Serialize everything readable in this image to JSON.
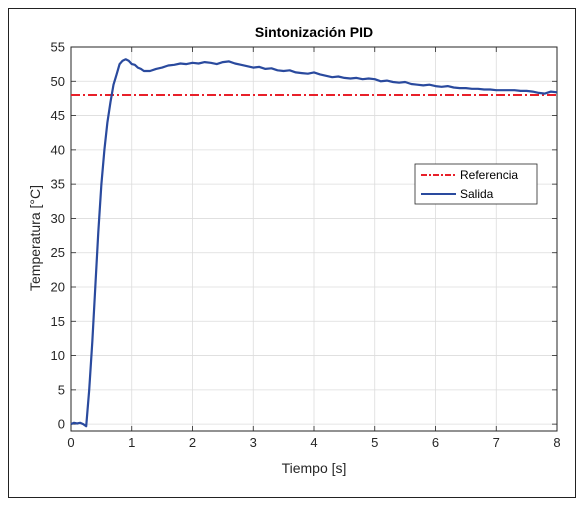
{
  "chart_data": {
    "type": "line",
    "title": "Sintonización PID",
    "xlabel": "Tiempo [s]",
    "ylabel": "Temperatura [°C]",
    "xlim": [
      0,
      8
    ],
    "ylim": [
      -1,
      55
    ],
    "xticks": [
      0,
      1,
      2,
      3,
      4,
      5,
      6,
      7,
      8
    ],
    "yticks": [
      0,
      5,
      10,
      15,
      20,
      25,
      30,
      35,
      40,
      45,
      50,
      55
    ],
    "grid": true,
    "legend_position": "right",
    "series": [
      {
        "name": "Referencia",
        "color": "#e8202a",
        "style": "dash-dot",
        "x": [
          0,
          8
        ],
        "y": [
          48,
          48
        ]
      },
      {
        "name": "Salida",
        "color": "#2a4a9e",
        "style": "solid",
        "x": [
          0,
          0.05,
          0.1,
          0.15,
          0.2,
          0.25,
          0.3,
          0.35,
          0.4,
          0.45,
          0.5,
          0.55,
          0.6,
          0.65,
          0.7,
          0.75,
          0.8,
          0.85,
          0.9,
          0.95,
          1.0,
          1.05,
          1.1,
          1.15,
          1.2,
          1.3,
          1.4,
          1.5,
          1.6,
          1.7,
          1.8,
          1.9,
          2.0,
          2.1,
          2.2,
          2.3,
          2.4,
          2.5,
          2.6,
          2.7,
          2.8,
          2.9,
          3.0,
          3.1,
          3.2,
          3.3,
          3.4,
          3.5,
          3.6,
          3.7,
          3.8,
          3.9,
          4.0,
          4.1,
          4.2,
          4.3,
          4.4,
          4.5,
          4.6,
          4.7,
          4.8,
          4.9,
          5.0,
          5.1,
          5.2,
          5.3,
          5.4,
          5.5,
          5.6,
          5.7,
          5.8,
          5.9,
          6.0,
          6.1,
          6.2,
          6.3,
          6.4,
          6.5,
          6.6,
          6.7,
          6.8,
          6.9,
          7.0,
          7.1,
          7.2,
          7.3,
          7.4,
          7.5,
          7.6,
          7.7,
          7.8,
          7.9,
          8.0
        ],
        "y": [
          0,
          0.2,
          0.1,
          0.2,
          0,
          -0.3,
          5,
          12,
          20,
          28,
          35,
          40,
          44,
          47,
          49.5,
          51,
          52.5,
          53,
          53.2,
          53,
          52.5,
          52.4,
          52,
          51.8,
          51.5,
          51.5,
          51.8,
          52,
          52.3,
          52.4,
          52.6,
          52.5,
          52.7,
          52.6,
          52.8,
          52.7,
          52.5,
          52.8,
          52.9,
          52.6,
          52.4,
          52.2,
          52,
          52.1,
          51.8,
          51.9,
          51.6,
          51.5,
          51.6,
          51.3,
          51.2,
          51.1,
          51.3,
          51.0,
          50.8,
          50.6,
          50.7,
          50.5,
          50.4,
          50.5,
          50.3,
          50.4,
          50.3,
          50.0,
          50.1,
          49.9,
          49.8,
          49.9,
          49.6,
          49.5,
          49.4,
          49.5,
          49.3,
          49.2,
          49.3,
          49.1,
          49.0,
          49.0,
          48.9,
          48.9,
          48.8,
          48.8,
          48.7,
          48.7,
          48.7,
          48.7,
          48.6,
          48.6,
          48.5,
          48.3,
          48.2,
          48.5,
          48.4
        ]
      }
    ]
  }
}
